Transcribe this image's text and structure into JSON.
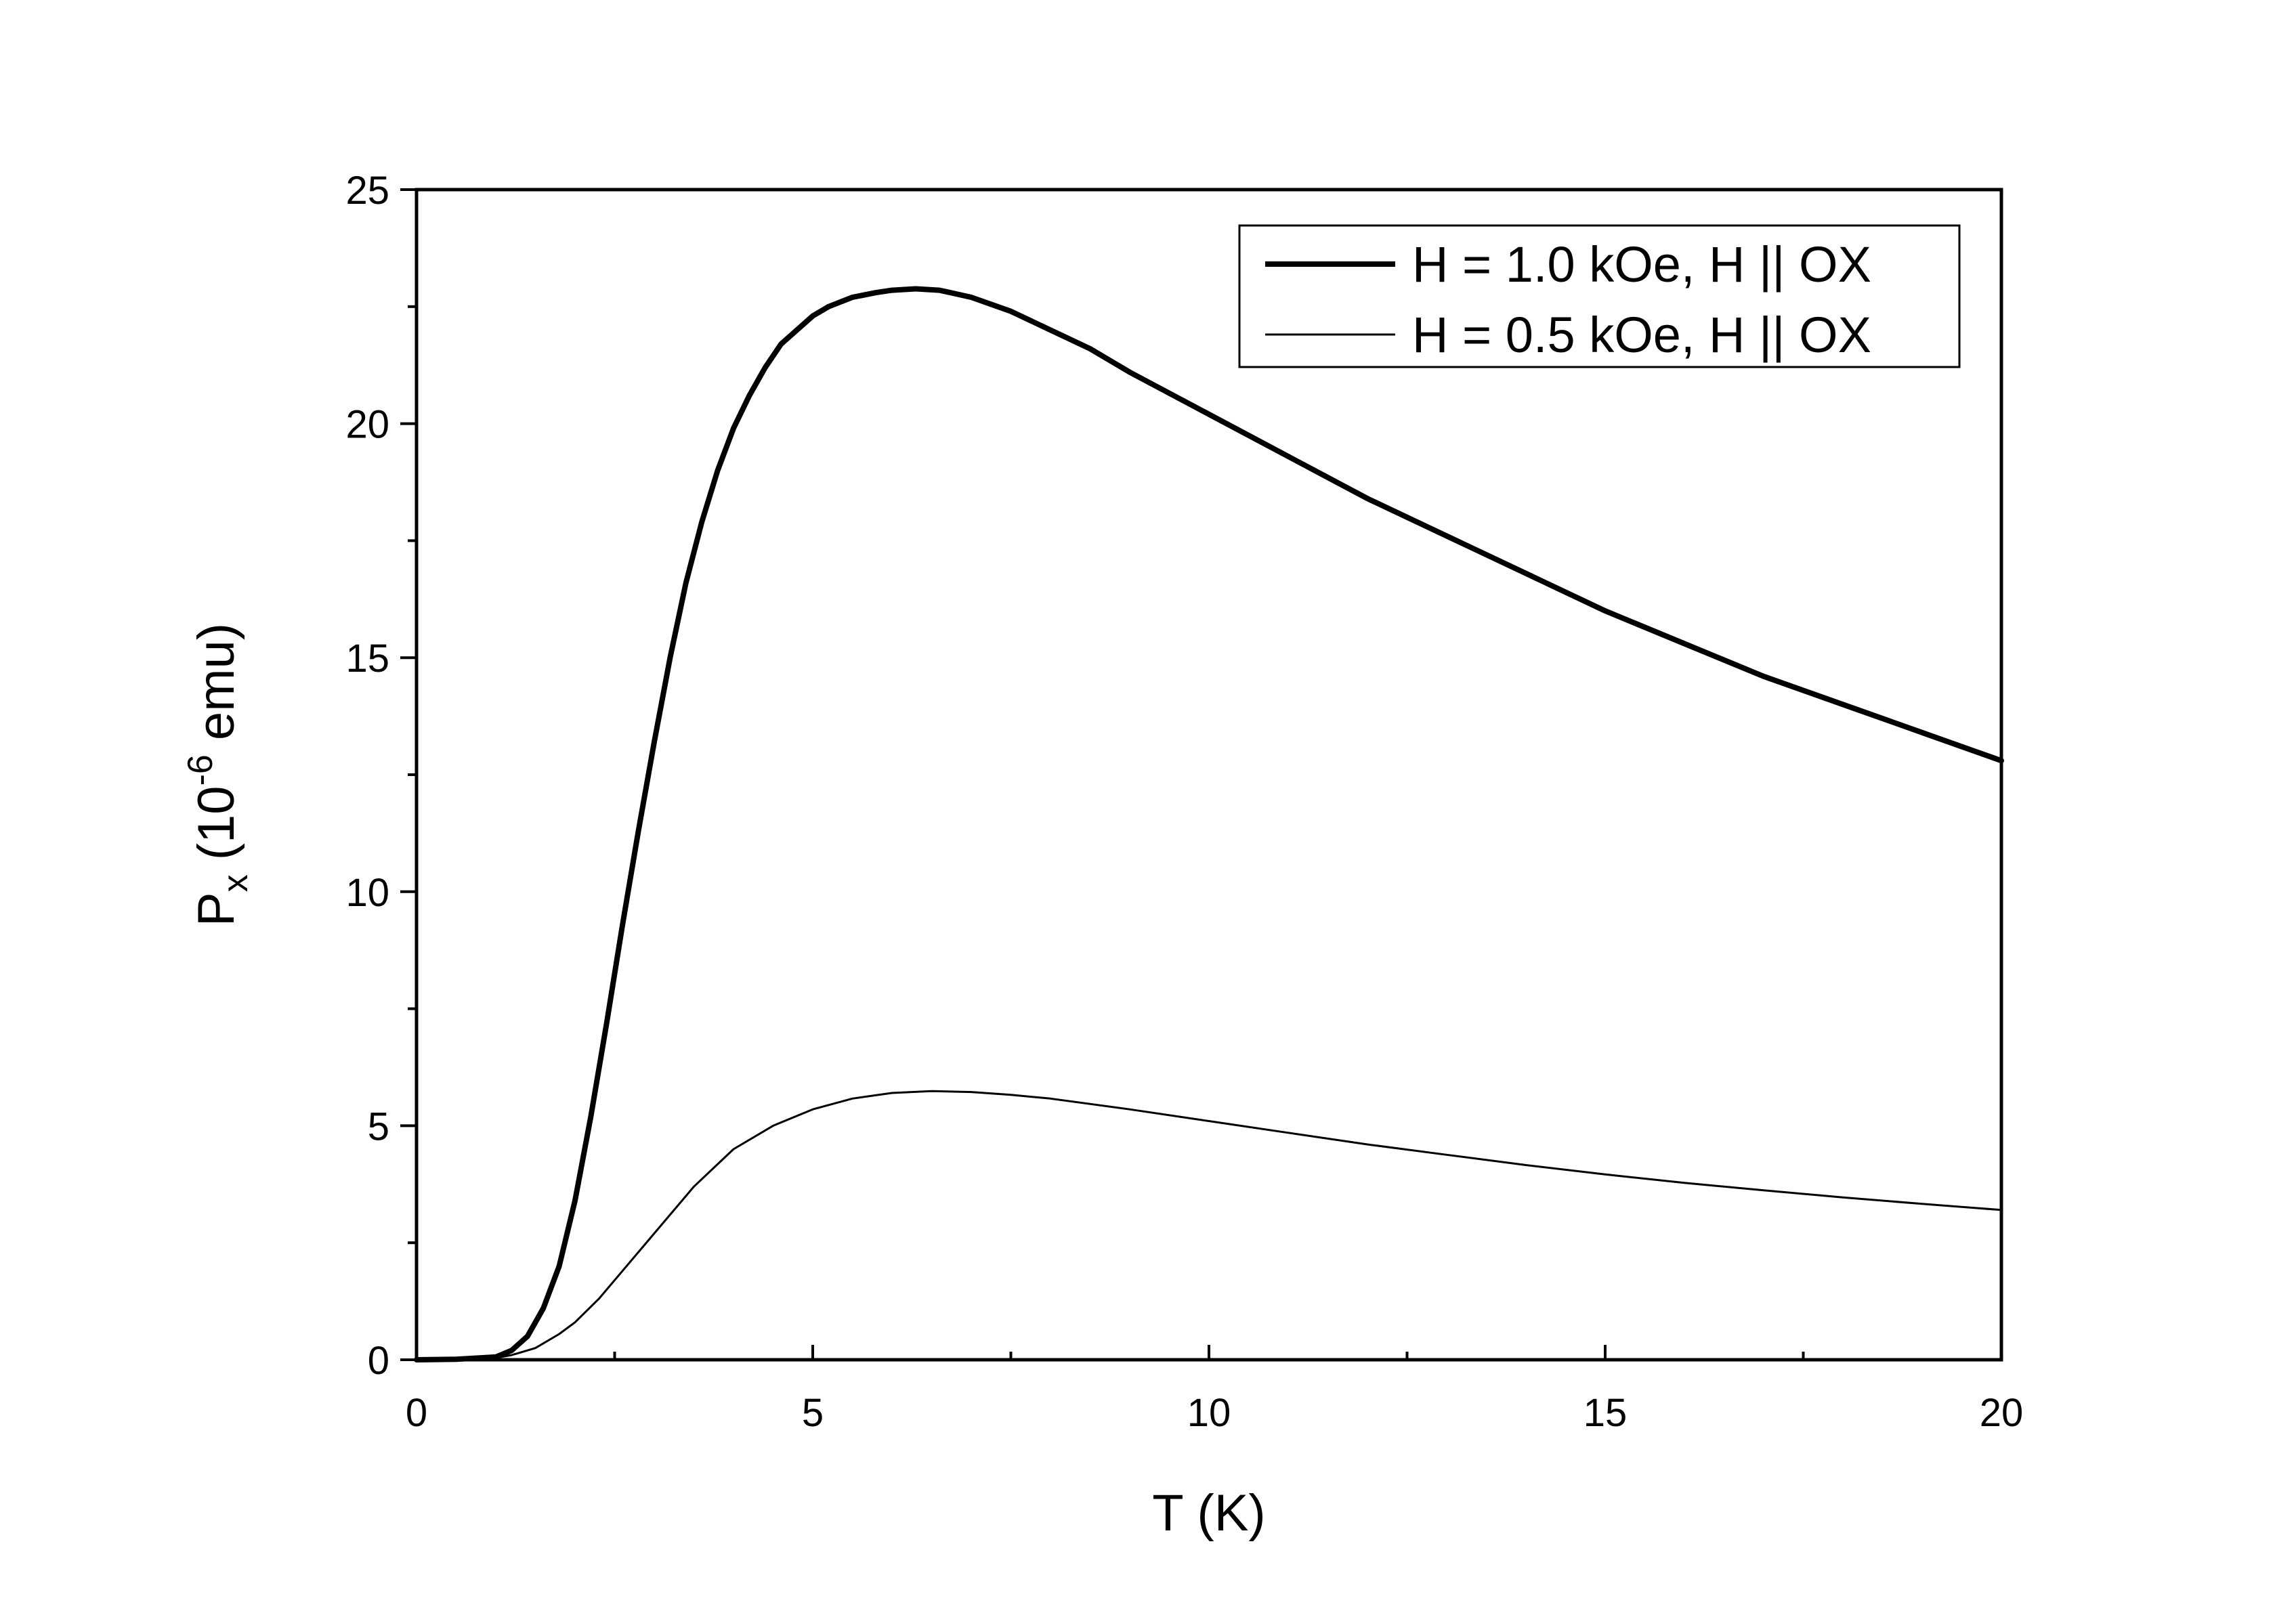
{
  "chart_data": {
    "type": "line",
    "xlabel": "T (K)",
    "ylabel": {
      "main": "P",
      "sub": "x",
      "pre": " (10",
      "sup": "-6",
      "post": " emu)"
    },
    "xlim": [
      0,
      20
    ],
    "ylim": [
      0,
      25
    ],
    "x_ticks": [
      0,
      5,
      10,
      15,
      20
    ],
    "y_ticks": [
      0,
      5,
      10,
      15,
      20,
      25
    ],
    "grid": false,
    "legend_position": "top-right",
    "series": [
      {
        "name": "H = 1.0 kOe, H || OX",
        "line": "thick",
        "x": [
          0,
          0.5,
          1.0,
          1.2,
          1.4,
          1.6,
          1.8,
          2.0,
          2.2,
          2.4,
          2.6,
          2.8,
          3.0,
          3.2,
          3.4,
          3.6,
          3.8,
          4.0,
          4.2,
          4.4,
          4.6,
          4.8,
          5.0,
          5.2,
          5.5,
          5.8,
          6.0,
          6.3,
          6.6,
          7.0,
          7.5,
          8.0,
          8.5,
          9.0,
          10.0,
          11.0,
          12.0,
          13.0,
          14.0,
          15.0,
          16.0,
          17.0,
          18.0,
          19.0,
          20.0
        ],
        "y": [
          0.0,
          0.01,
          0.06,
          0.2,
          0.5,
          1.1,
          2.0,
          3.4,
          5.2,
          7.2,
          9.3,
          11.3,
          13.2,
          15.0,
          16.6,
          17.9,
          19.0,
          19.9,
          20.6,
          21.2,
          21.7,
          22.0,
          22.3,
          22.5,
          22.7,
          22.8,
          22.85,
          22.88,
          22.85,
          22.7,
          22.4,
          22.0,
          21.6,
          21.1,
          20.2,
          19.3,
          18.4,
          17.6,
          16.8,
          16.0,
          15.3,
          14.6,
          14.0,
          13.4,
          12.8
        ]
      },
      {
        "name": "H = 0.5 kOe, H || OX",
        "line": "thin",
        "x": [
          0,
          0.5,
          1.0,
          1.2,
          1.5,
          1.8,
          2.0,
          2.3,
          2.6,
          3.0,
          3.5,
          4.0,
          4.5,
          5.0,
          5.5,
          6.0,
          6.5,
          7.0,
          7.5,
          8.0,
          9.0,
          10.0,
          11.0,
          12.0,
          13.0,
          14.0,
          15.0,
          16.0,
          17.0,
          18.0,
          19.0,
          20.0
        ],
        "y": [
          0.0,
          0.01,
          0.04,
          0.1,
          0.25,
          0.55,
          0.8,
          1.3,
          1.9,
          2.7,
          3.7,
          4.5,
          5.0,
          5.35,
          5.58,
          5.7,
          5.74,
          5.72,
          5.66,
          5.58,
          5.35,
          5.1,
          4.85,
          4.6,
          4.38,
          4.16,
          3.96,
          3.78,
          3.62,
          3.47,
          3.33,
          3.2
        ]
      }
    ]
  }
}
